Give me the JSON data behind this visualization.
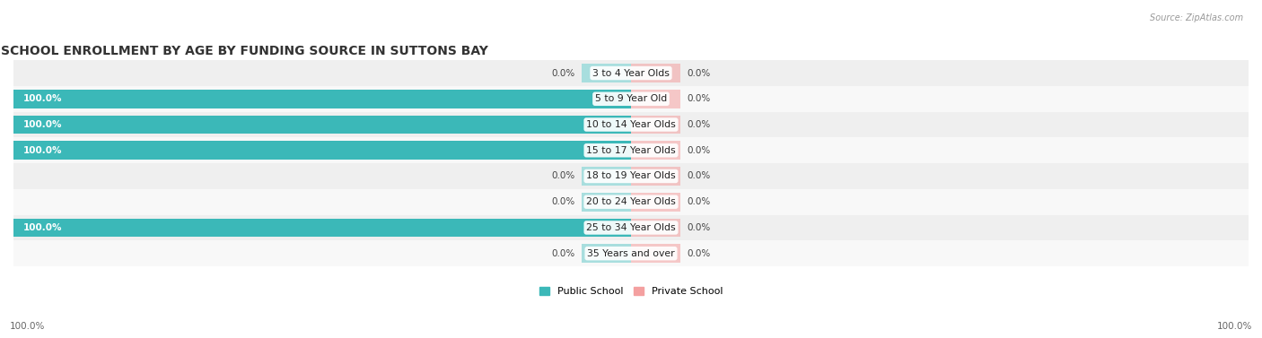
{
  "title": "SCHOOL ENROLLMENT BY AGE BY FUNDING SOURCE IN SUTTONS BAY",
  "source": "Source: ZipAtlas.com",
  "categories": [
    "3 to 4 Year Olds",
    "5 to 9 Year Old",
    "10 to 14 Year Olds",
    "15 to 17 Year Olds",
    "18 to 19 Year Olds",
    "20 to 24 Year Olds",
    "25 to 34 Year Olds",
    "35 Years and over"
  ],
  "public_values": [
    0.0,
    100.0,
    100.0,
    100.0,
    0.0,
    0.0,
    100.0,
    0.0
  ],
  "private_values": [
    0.0,
    0.0,
    0.0,
    0.0,
    0.0,
    0.0,
    0.0,
    0.0
  ],
  "public_color": "#3bb8b8",
  "public_color_faint": "#a8dede",
  "private_color": "#f4a0a0",
  "private_color_faint": "#f4a0a0",
  "public_label": "Public School",
  "private_label": "Private School",
  "row_bg_alt": "#efefef",
  "row_bg_main": "#f8f8f8",
  "title_fontsize": 10,
  "axis_label_left": "100.0%",
  "axis_label_right": "100.0%"
}
